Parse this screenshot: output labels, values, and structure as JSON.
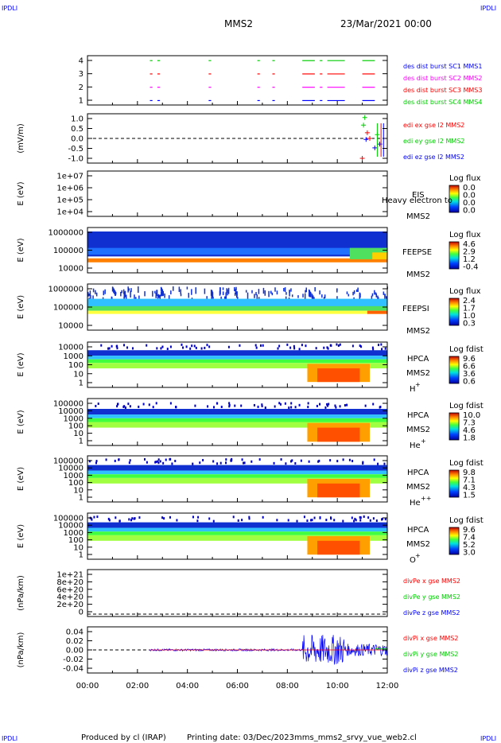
{
  "header": {
    "corner_tl": "IPDLI",
    "corner_tr": "IPDLI",
    "spacecraft": "MMS2",
    "date": "23/Mar/2021 00:00"
  },
  "footer": {
    "produced_by": "Produced by cl (IRAP)",
    "printing_date": "Printing date: 03/Dec/2023",
    "filename": "mms_mms2_srvy_vue_web2.cl",
    "corner_bl": "IPDLI",
    "corner_br": "IPDLI"
  },
  "colors": {
    "red": "#ff0000",
    "green": "#00cc00",
    "blue": "#0000ff",
    "magenta": "#ff00ff",
    "axis": "#000000"
  },
  "x_axis": {
    "range_hours": [
      0,
      12
    ],
    "ticks": [
      "00:00",
      "02:00",
      "04:00",
      "06:00",
      "08:00",
      "10:00",
      "12:00"
    ]
  },
  "chart_data": [
    {
      "id": "burst",
      "type": "line",
      "ylabel": "",
      "yticks": [
        "4",
        "3",
        "2",
        "1"
      ],
      "legend": [
        {
          "text": "des dist burst SC1 MMS1",
          "color": "#0000ff"
        },
        {
          "text": "des dist burst SC2 MMS2",
          "color": "#ff00ff"
        },
        {
          "text": "des dist burst SC3 MMS3",
          "color": "#ff0000"
        },
        {
          "text": "des dist burst SC4 MMS4",
          "color": "#00cc00"
        }
      ],
      "series": [
        {
          "level": 4,
          "color": "#00cc00",
          "intervals": [
            [
              2.5,
              2.6
            ],
            [
              2.8,
              2.9
            ],
            [
              4.85,
              4.95
            ],
            [
              6.8,
              6.9
            ],
            [
              7.4,
              7.5
            ],
            [
              8.6,
              9.1
            ],
            [
              9.3,
              9.4
            ],
            [
              9.6,
              10.3
            ],
            [
              11.0,
              11.5
            ]
          ]
        },
        {
          "level": 3,
          "color": "#ff0000",
          "intervals": [
            [
              2.5,
              2.6
            ],
            [
              2.8,
              2.9
            ],
            [
              4.85,
              4.95
            ],
            [
              6.8,
              6.9
            ],
            [
              7.4,
              7.5
            ],
            [
              8.6,
              9.1
            ],
            [
              9.3,
              9.4
            ],
            [
              9.6,
              10.3
            ],
            [
              11.0,
              11.5
            ]
          ]
        },
        {
          "level": 2,
          "color": "#ff00ff",
          "intervals": [
            [
              2.5,
              2.6
            ],
            [
              2.8,
              2.9
            ],
            [
              4.85,
              4.95
            ],
            [
              6.8,
              6.9
            ],
            [
              7.4,
              7.5
            ],
            [
              8.6,
              9.1
            ],
            [
              9.3,
              9.4
            ],
            [
              9.6,
              10.3
            ],
            [
              11.0,
              11.5
            ]
          ]
        },
        {
          "level": 1,
          "color": "#0000ff",
          "intervals": [
            [
              2.5,
              2.6
            ],
            [
              2.8,
              2.9
            ],
            [
              4.85,
              4.95
            ],
            [
              6.8,
              6.9
            ],
            [
              7.4,
              7.5
            ],
            [
              8.6,
              9.1
            ],
            [
              9.3,
              9.4
            ],
            [
              9.6,
              10.3
            ],
            [
              11.0,
              11.5
            ]
          ]
        }
      ]
    },
    {
      "id": "edi",
      "type": "scatter",
      "ylabel": "(mV/m)",
      "yticks": [
        "1.0",
        "0.5",
        "0.0",
        "-0.5",
        "-1.0"
      ],
      "ylim": [
        -1.3,
        1.3
      ],
      "legend": [
        {
          "text": "edi ex gse l2 MMS2",
          "color": "#ff0000"
        },
        {
          "text": "edi ey gse l2 MMS2",
          "color": "#00cc00"
        },
        {
          "text": "edi ez gse l2 MMS2",
          "color": "#0000ff"
        }
      ],
      "points": [
        {
          "x": 11.1,
          "y": 1.1,
          "color": "#00cc00"
        },
        {
          "x": 11.05,
          "y": 0.7,
          "color": "#00cc00"
        },
        {
          "x": 11.2,
          "y": 0.3,
          "color": "#ff0000"
        },
        {
          "x": 11.0,
          "y": -1.05,
          "color": "#ff0000"
        },
        {
          "x": 11.3,
          "y": 0.0,
          "color": "#ff0000"
        },
        {
          "x": 11.6,
          "y": 0.2,
          "color": "#00cc00"
        },
        {
          "x": 11.7,
          "y": -0.3,
          "color": "#0000ff"
        },
        {
          "x": 11.5,
          "y": -0.5,
          "color": "#0000ff"
        },
        {
          "x": 11.15,
          "y": -0.05,
          "color": "#0000ff"
        }
      ]
    },
    {
      "id": "eis",
      "type": "heatmap",
      "ylabel": "E (eV)",
      "yticks": [
        "1e+07",
        "1e+06",
        "1e+05",
        "1e+04"
      ],
      "instrument": "EIS",
      "spacecraft": "MMS2",
      "overlay": "Heavy electron to",
      "colorbar": {
        "title": "Log flux",
        "ticks": [
          "0.0",
          "0.0",
          "0.0",
          "0.0"
        ]
      }
    },
    {
      "id": "feepse",
      "type": "heatmap",
      "ylabel": "E (eV)",
      "yticks": [
        "1000000",
        "100000",
        "10000"
      ],
      "instrument": "FEEPSE",
      "spacecraft": "MMS2",
      "colorbar": {
        "title": "Log flux",
        "ticks": [
          "4.6",
          "2.9",
          "1.2",
          "-0.4"
        ]
      }
    },
    {
      "id": "feepsi",
      "type": "heatmap",
      "ylabel": "E (eV)",
      "yticks": [
        "1000000",
        "100000",
        "10000"
      ],
      "instrument": "FEEPSI",
      "spacecraft": "MMS2",
      "colorbar": {
        "title": "Log flux",
        "ticks": [
          "2.4",
          "1.7",
          "1.0",
          "0.3"
        ]
      }
    },
    {
      "id": "hpca_h",
      "type": "heatmap",
      "ylabel": "E (eV)",
      "yticks": [
        "10000",
        "1000",
        "100",
        "10",
        "1"
      ],
      "instrument": "HPCA",
      "spacecraft": "MMS2",
      "species": "H",
      "charge": "+",
      "colorbar": {
        "title": "Log fdist",
        "ticks": [
          "9.6",
          "6.6",
          "3.6",
          "0.6"
        ]
      }
    },
    {
      "id": "hpca_he1",
      "type": "heatmap",
      "ylabel": "E (eV)",
      "yticks": [
        "100000",
        "10000",
        "1000",
        "100",
        "10",
        "1"
      ],
      "instrument": "HPCA",
      "spacecraft": "MMS2",
      "species": "He",
      "charge": "+",
      "colorbar": {
        "title": "Log fdist",
        "ticks": [
          "10.0",
          "7.3",
          "4.6",
          "1.8"
        ]
      }
    },
    {
      "id": "hpca_he2",
      "type": "heatmap",
      "ylabel": "E (eV)",
      "yticks": [
        "100000",
        "10000",
        "1000",
        "100",
        "10",
        "1"
      ],
      "instrument": "HPCA",
      "spacecraft": "MMS2",
      "species": "He",
      "charge": "++",
      "colorbar": {
        "title": "Log fdist",
        "ticks": [
          "9.8",
          "7.1",
          "4.3",
          "1.5"
        ]
      }
    },
    {
      "id": "hpca_o",
      "type": "heatmap",
      "ylabel": "E (eV)",
      "yticks": [
        "100000",
        "10000",
        "1000",
        "100",
        "10",
        "1"
      ],
      "instrument": "HPCA",
      "spacecraft": "MMS2",
      "species": "O",
      "charge": "+",
      "colorbar": {
        "title": "Log fdist",
        "ticks": [
          "9.6",
          "7.4",
          "5.2",
          "3.0"
        ]
      }
    },
    {
      "id": "divpe",
      "type": "line",
      "ylabel": "(nPa/km)",
      "yticks": [
        "1e+21",
        "8e+20",
        "6e+20",
        "4e+20",
        "2e+20",
        "0"
      ],
      "legend": [
        {
          "text": "divPe x gse MMS2",
          "color": "#ff0000"
        },
        {
          "text": "divPe y gse MMS2",
          "color": "#00cc00"
        },
        {
          "text": "divPe z gse MMS2",
          "color": "#0000ff"
        }
      ]
    },
    {
      "id": "divpi",
      "type": "line",
      "ylabel": "(nPa/km)",
      "yticks": [
        "0.04",
        "0.02",
        "0.00",
        "-0.02",
        "-0.04"
      ],
      "ylim": [
        -0.045,
        0.045
      ],
      "legend": [
        {
          "text": "divPi x gse MMS2",
          "color": "#ff0000"
        },
        {
          "text": "divPi y gse MMS2",
          "color": "#00cc00"
        },
        {
          "text": "divPi z gse MMS2",
          "color": "#0000ff"
        }
      ]
    }
  ]
}
